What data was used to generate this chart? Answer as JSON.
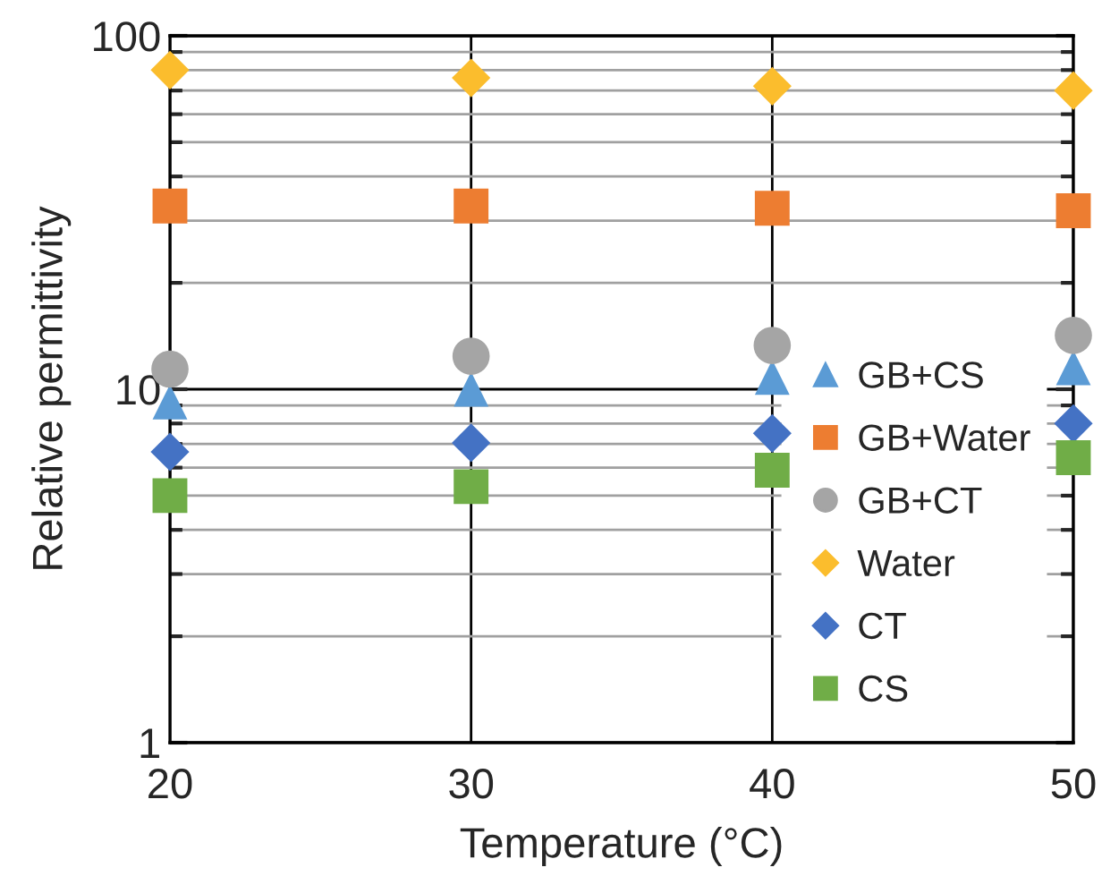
{
  "chart_data": {
    "type": "scatter",
    "xlabel": "Temperature (°C)",
    "ylabel": "Relative permittivity",
    "x": [
      20,
      30,
      40,
      50
    ],
    "xlim": [
      20,
      50
    ],
    "xticks": [
      20,
      30,
      40,
      50
    ],
    "log": true,
    "ylim": [
      1,
      100
    ],
    "yticks": [
      1,
      10,
      100
    ],
    "grid": true,
    "legend": "bottom right",
    "series": [
      {
        "name": "GB+CS",
        "color": "#5b9bd5",
        "marker": "triangle",
        "values": [
          9.2,
          10.0,
          10.8,
          11.5
        ]
      },
      {
        "name": "GB+Water",
        "color": "#ed7d31",
        "marker": "square",
        "values": [
          33,
          33,
          32.5,
          32
        ]
      },
      {
        "name": "GB+CT",
        "color": "#a5a5a5",
        "marker": "circle",
        "values": [
          11.4,
          12.4,
          13.3,
          14.2
        ]
      },
      {
        "name": "Water",
        "color": "#fbbd2d",
        "marker": "diamond",
        "values": [
          80,
          76,
          72,
          70
        ]
      },
      {
        "name": "CT",
        "color": "#4472c4",
        "marker": "diamond",
        "values": [
          6.65,
          7.05,
          7.5,
          8.0
        ]
      },
      {
        "name": "CS",
        "color": "#70ad47",
        "marker": "square",
        "values": [
          5.0,
          5.3,
          5.9,
          6.4
        ]
      }
    ]
  }
}
